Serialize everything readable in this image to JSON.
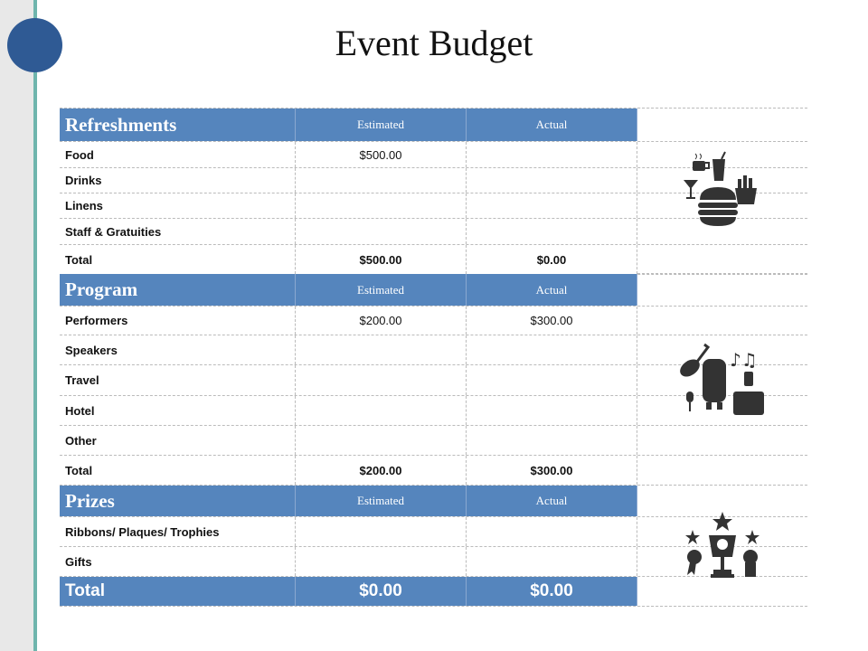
{
  "title": "Event Budget",
  "colors": {
    "header": "#5585bd",
    "accent_line": "#6fb5ad",
    "circle": "#2f5a94"
  },
  "sections": [
    {
      "name": "Refreshments",
      "estimated_label": "Estimated",
      "actual_label": "Actual",
      "rows": [
        {
          "item": "Food",
          "estimated": "$500.00",
          "actual": ""
        },
        {
          "item": "Drinks",
          "estimated": "",
          "actual": ""
        },
        {
          "item": "Linens",
          "estimated": "",
          "actual": ""
        },
        {
          "item": "Staff & Gratuities",
          "estimated": "",
          "actual": ""
        }
      ],
      "total": {
        "label": "Total",
        "estimated": "$500.00",
        "actual": "$0.00"
      },
      "icon": "food-drinks-icon"
    },
    {
      "name": "Program",
      "estimated_label": "Estimated",
      "actual_label": "Actual",
      "rows": [
        {
          "item": "Performers",
          "estimated": "$200.00",
          "actual": "$300.00"
        },
        {
          "item": "Speakers",
          "estimated": "",
          "actual": ""
        },
        {
          "item": "Travel",
          "estimated": "",
          "actual": ""
        },
        {
          "item": "Hotel",
          "estimated": "",
          "actual": ""
        },
        {
          "item": "Other",
          "estimated": "",
          "actual": ""
        }
      ],
      "total": {
        "label": "Total",
        "estimated": "$200.00",
        "actual": "$300.00"
      },
      "icon": "music-travel-icon"
    },
    {
      "name": "Prizes",
      "estimated_label": "Estimated",
      "actual_label": "Actual",
      "rows": [
        {
          "item": "Ribbons/ Plaques/ Trophies",
          "estimated": "",
          "actual": ""
        },
        {
          "item": "Gifts",
          "estimated": "",
          "actual": ""
        }
      ],
      "total": {
        "label": "Total",
        "estimated": "$0.00",
        "actual": "$0.00"
      },
      "icon": "trophy-icon"
    }
  ]
}
